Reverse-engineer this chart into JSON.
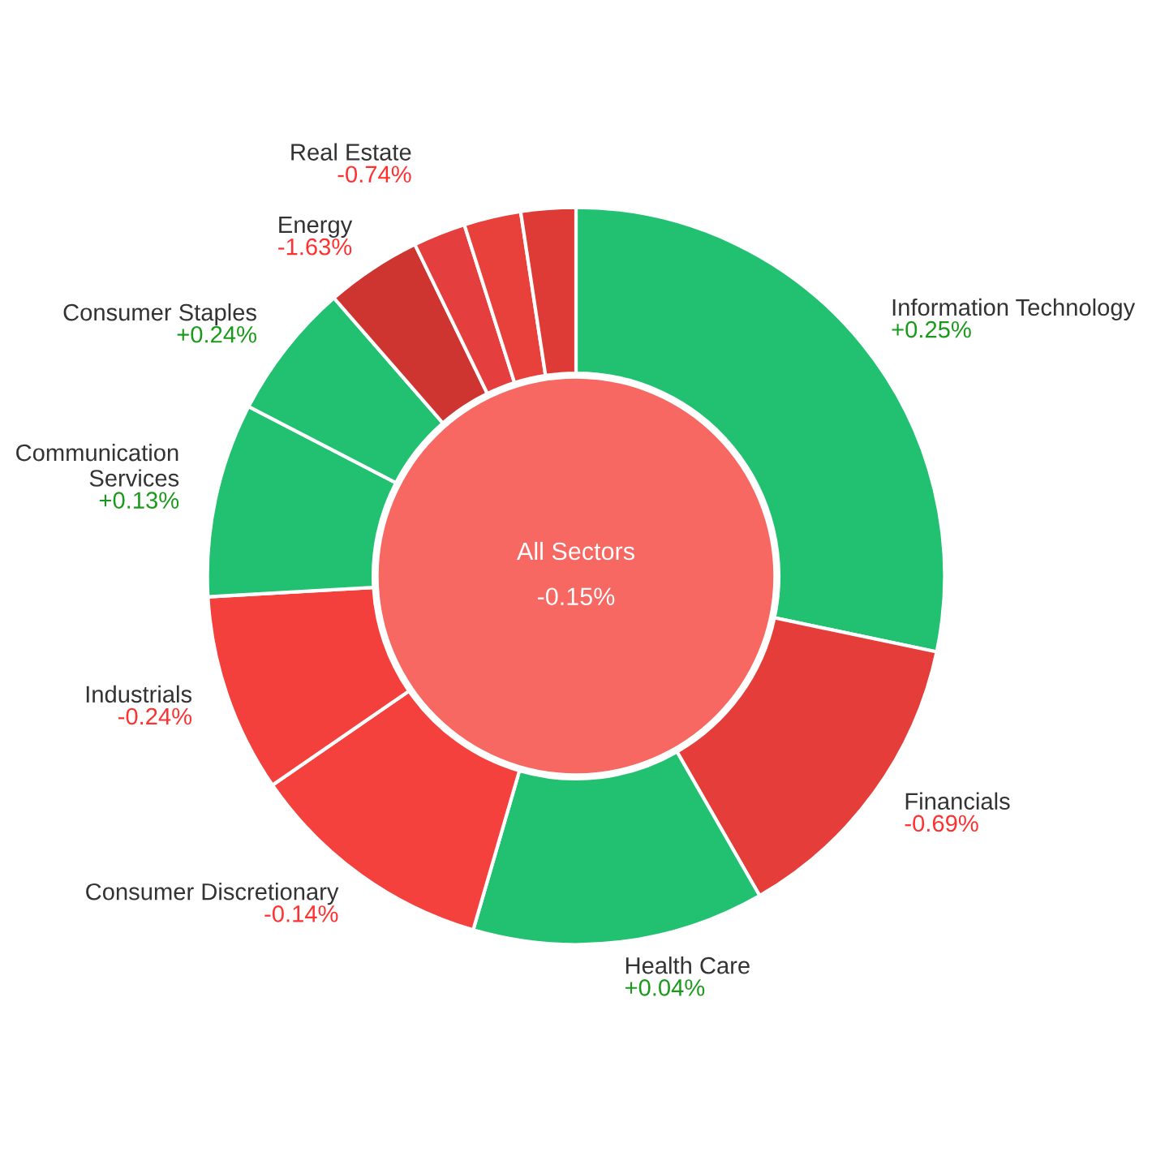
{
  "chart_data": {
    "type": "donut",
    "title": "All Sectors",
    "categories": [
      "Information Technology",
      "Financials",
      "Health Care",
      "Consumer Discretionary",
      "Industrials",
      "Communication\nServices",
      "Consumer Staples",
      "Energy",
      "Real Estate",
      null,
      null
    ],
    "values": [
      28.3,
      13.4,
      12.8,
      10.9,
      8.7,
      8.5,
      6.0,
      4.2,
      2.3,
      2.5,
      2.4
    ],
    "colors": [
      "#22c172",
      "#e53e3a",
      "#22c172",
      "#f5413d",
      "#f4403c",
      "#22c172",
      "#22c172",
      "#cf3530",
      "#e53e3e",
      "#e8403a",
      "#df3b36"
    ],
    "annotations": [
      "-0.15%",
      {
        "text": "+0.25%",
        "x": "Information Technology"
      },
      {
        "text": "-0.69%",
        "x": "Financials"
      },
      {
        "text": "+0.04%",
        "x": "Health Care"
      },
      {
        "text": "-0.14%",
        "x": "Consumer Discretionary"
      },
      {
        "text": "-0.24%",
        "x": "Industrials"
      },
      {
        "text": "+0.13%",
        "x": "Communication\nServices"
      },
      {
        "text": "+0.24%",
        "x": "Consumer Staples"
      },
      {
        "text": "-1.63%",
        "x": "Energy"
      },
      {
        "text": "-0.74%",
        "x": "Real Estate"
      }
    ]
  }
}
